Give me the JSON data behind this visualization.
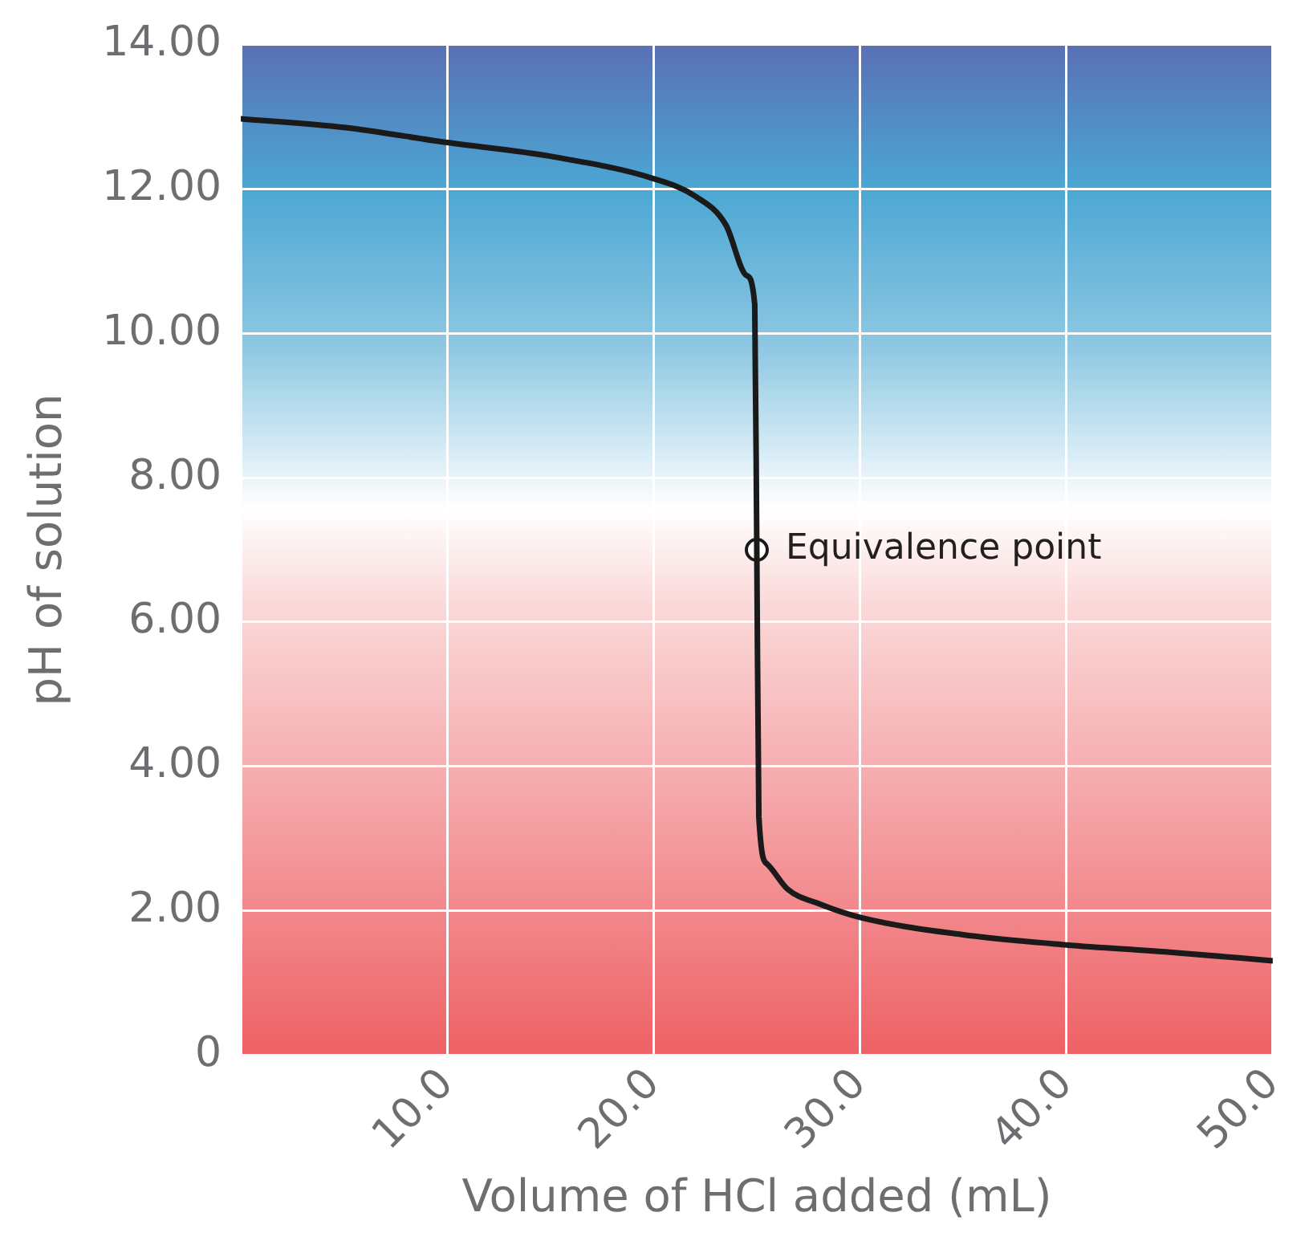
{
  "chart_data": {
    "type": "line",
    "xlabel": "Volume of HCl added (mL)",
    "ylabel": "pH of solution",
    "xlim": [
      0,
      50
    ],
    "xticks": [
      {
        "value": 0,
        "label": null
      },
      {
        "value": 10,
        "label": "10.0"
      },
      {
        "value": 20,
        "label": "20.0"
      },
      {
        "value": 30,
        "label": "30.0"
      },
      {
        "value": 40,
        "label": "40.0"
      },
      {
        "value": 50,
        "label": "50.0"
      }
    ],
    "ylim": [
      0,
      14
    ],
    "yticks": [
      {
        "value": 0,
        "label": "0"
      },
      {
        "value": 2,
        "label": "2.00"
      },
      {
        "value": 4,
        "label": "4.00"
      },
      {
        "value": 6,
        "label": "6.00"
      },
      {
        "value": 8,
        "label": "8.00"
      },
      {
        "value": 10,
        "label": "10.00"
      },
      {
        "value": 12,
        "label": "12.00"
      },
      {
        "value": 14,
        "label": "14.00"
      }
    ],
    "grid": true,
    "legend": false,
    "line_style": "solid",
    "series": [
      {
        "type": "line",
        "marker": "none",
        "color": "#1a1a1a",
        "x": [
          0,
          5,
          10,
          15,
          20,
          22,
          23.5,
          24.5,
          24.9,
          25,
          25.1,
          25.5,
          26.5,
          28,
          30,
          35,
          40,
          45,
          50
        ],
        "values": [
          12.97,
          12.85,
          12.64,
          12.45,
          12.14,
          11.9,
          11.5,
          10.8,
          10.4,
          7.0,
          3.3,
          2.65,
          2.3,
          2.1,
          1.91,
          1.67,
          1.53,
          1.43,
          1.31
        ]
      },
      {
        "type": "scatter",
        "marker": "circle",
        "color": "#1a1a1a",
        "x": [
          25
        ],
        "values": [
          7.0
        ]
      }
    ],
    "annotations": [
      {
        "text": "Equivalence point",
        "x": 25,
        "y": 7.0
      }
    ]
  }
}
